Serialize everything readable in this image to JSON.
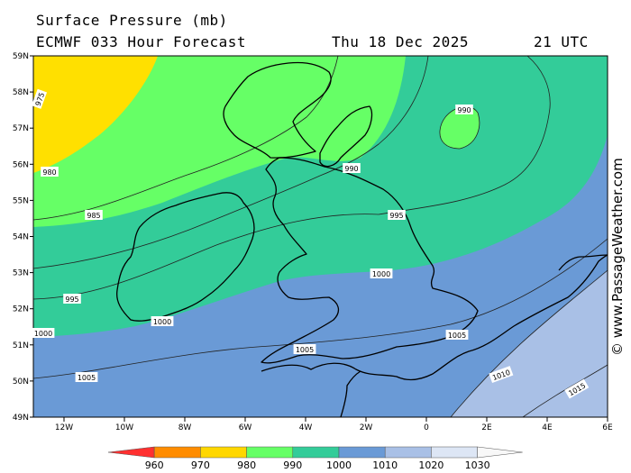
{
  "header": {
    "title": "Surface Pressure (mb)",
    "model": "ECMWF 033 Hour Forecast",
    "date": "Thu 18 Dec 2025",
    "time": "21 UTC"
  },
  "credit": "© www.PassageWeather.com",
  "axes": {
    "lat_labels": [
      "59N",
      "58N",
      "57N",
      "56N",
      "55N",
      "54N",
      "53N",
      "52N",
      "51N",
      "50N",
      "49N"
    ],
    "lon_labels": [
      "12W",
      "10W",
      "8W",
      "6W",
      "4W",
      "2W",
      "0",
      "2E",
      "4E",
      "6E"
    ]
  },
  "isobars": [
    {
      "text": "975"
    },
    {
      "text": "980"
    },
    {
      "text": "985"
    },
    {
      "text": "990"
    },
    {
      "text": "990"
    },
    {
      "text": "995"
    },
    {
      "text": "995"
    },
    {
      "text": "1000"
    },
    {
      "text": "1000"
    },
    {
      "text": "1000"
    },
    {
      "text": "1005"
    },
    {
      "text": "1005"
    },
    {
      "text": "1005"
    },
    {
      "text": "1010"
    },
    {
      "text": "1015"
    }
  ],
  "legend": {
    "labels": [
      "960",
      "970",
      "980",
      "990",
      "1000",
      "1010",
      "1020",
      "1030"
    ],
    "colors": [
      "#ff3030",
      "#ff8c00",
      "#ffd700",
      "#66ff66",
      "#33cc99",
      "#6a9ad6",
      "#a9c0e6",
      "#dde6f5"
    ]
  },
  "fills": {
    "band_975_980": "#ffe000",
    "band_980_990": "#66ff66",
    "band_990_1000": "#33cc99",
    "band_1000_1010": "#6a9ad6",
    "band_1010_1020": "#a9c0e6"
  }
}
